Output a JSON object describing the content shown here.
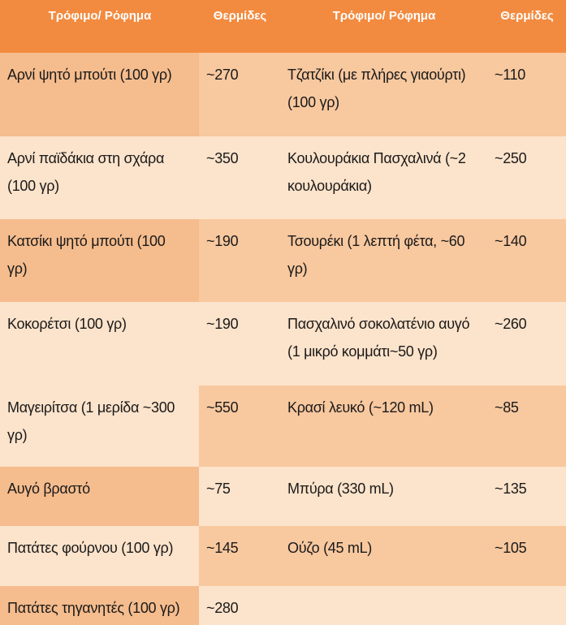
{
  "colors": {
    "header_bg": "#F28B40",
    "header_text": "#FFFFFF",
    "cell_dark": "#F5BC8D",
    "cell_medium": "#F8C89F",
    "cell_cream": "#FCE3CB",
    "text_color": "#1A1A1A"
  },
  "table": {
    "headers": [
      "Τρόφιμο/ Ρόφημα",
      "Θερμίδες",
      "Τρόφιμο/ Ρόφημα",
      "Θερμίδες"
    ],
    "rows": [
      {
        "food_left": "Αρνί ψητό μπούτι (100 γρ)",
        "cal_left": "~270",
        "food_right": "Τζατζίκι (με πλήρες γιαούρτι)\n(100 γρ)",
        "cal_right": "~110"
      },
      {
        "food_left": "Αρνί παϊδάκια στη σχάρα\n(100 γρ)",
        "cal_left": "~350",
        "food_right": "Κουλουράκια Πασχαλινά (~2\nκουλουράκια)",
        "cal_right": "~250"
      },
      {
        "food_left": "Κατσίκι ψητό μπούτι (100\nγρ)",
        "cal_left": "~190",
        "food_right": "Τσουρέκι (1 λεπτή φέτα, ~60\nγρ)",
        "cal_right": "~140"
      },
      {
        "food_left": "Κοκορέτσι (100 γρ)",
        "cal_left": "~190",
        "food_right": "Πασχαλινό σοκολατένιο αυγό\n(1 μικρό κομμάτι~50 γρ)",
        "cal_right": "~260"
      },
      {
        "food_left": "Μαγειρίτσα (1 μερίδα ~300\nγρ)",
        "cal_left": "~550",
        "food_right": "Κρασί λευκό (~120 mL)",
        "cal_right": "~85"
      },
      {
        "food_left": "Αυγό βραστό",
        "cal_left": "~75",
        "food_right": "Μπύρα (330 mL)",
        "cal_right": "~135"
      },
      {
        "food_left": "Πατάτες φούρνου (100 γρ)",
        "cal_left": "~145",
        "food_right": "Ούζο (45 mL)",
        "cal_right": "~105"
      },
      {
        "food_left": "Πατάτες τηγανητές (100 γρ)",
        "cal_left": "~280",
        "food_right": "",
        "cal_right": ""
      }
    ]
  }
}
